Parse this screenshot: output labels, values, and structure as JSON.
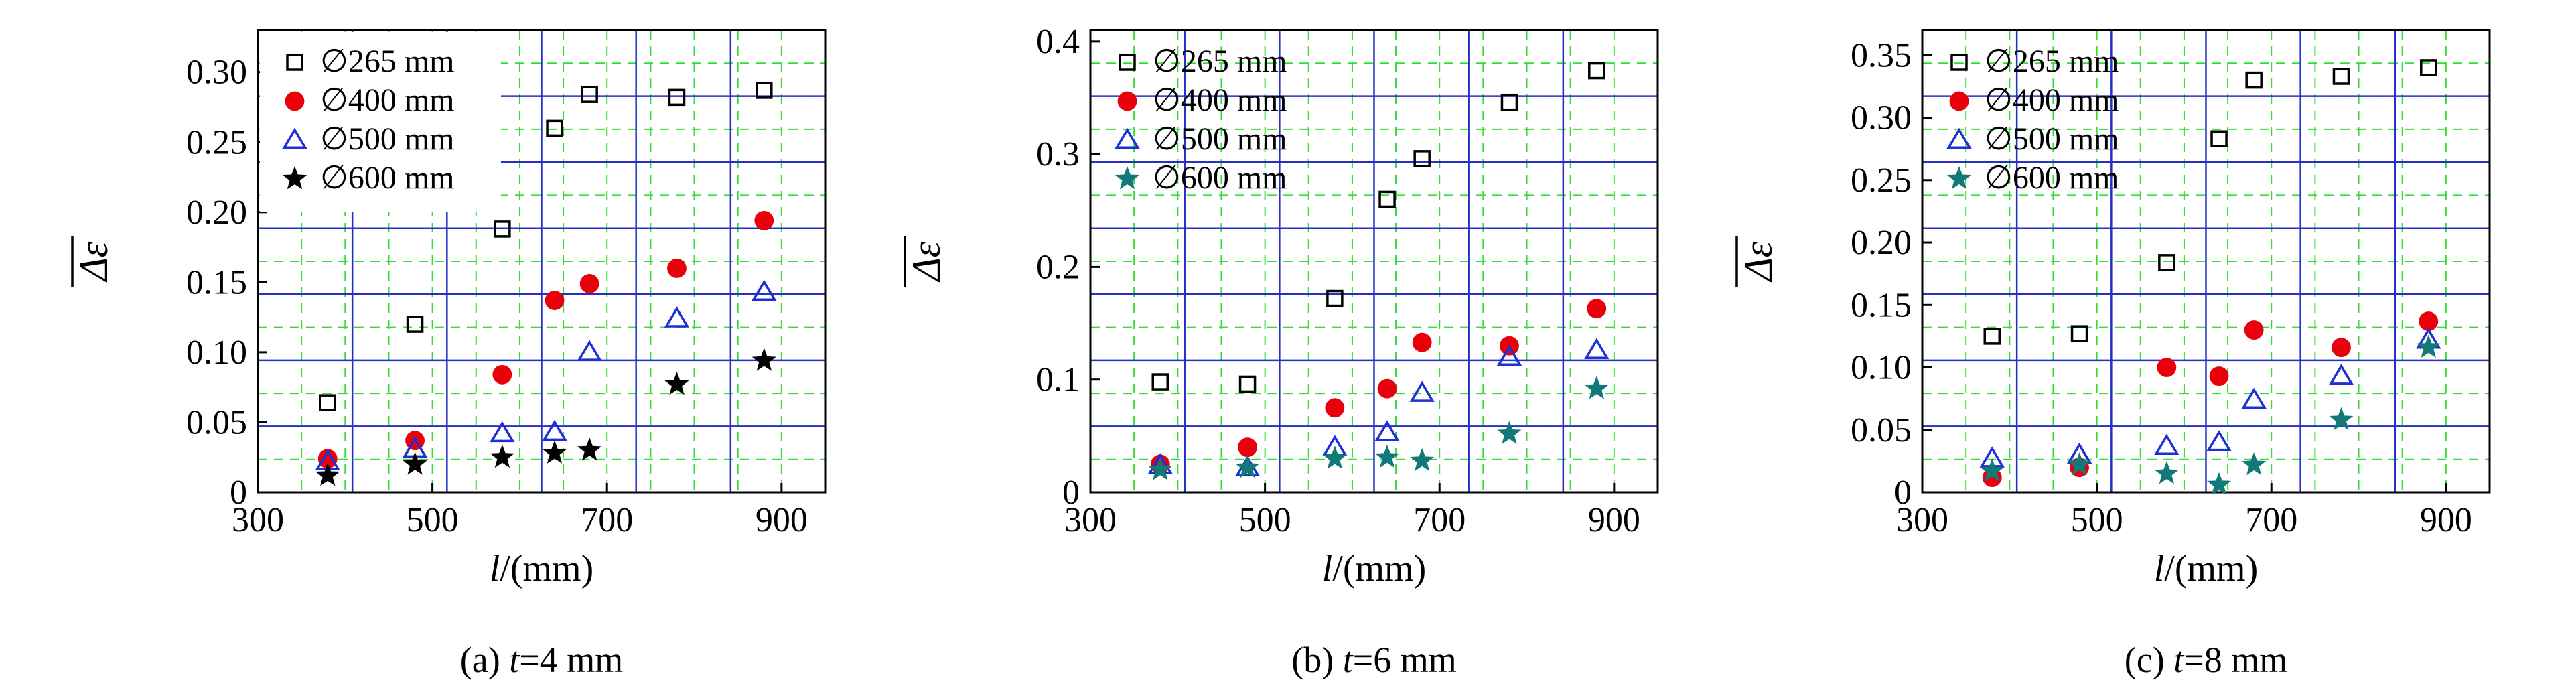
{
  "panels": [
    {
      "caption_prefix": "(a) ",
      "caption_var": "t",
      "caption_suffix": "=4 mm",
      "ylabel": "Δε",
      "xlabel_var": "l",
      "xlabel_unit": "/(mm)",
      "legend": [
        "∅265 mm",
        "∅400 mm",
        "∅500 mm",
        "∅600 mm"
      ]
    },
    {
      "caption_prefix": "(b) ",
      "caption_var": "t",
      "caption_suffix": "=6 mm",
      "ylabel": "Δε",
      "xlabel_var": "l",
      "xlabel_unit": "/(mm)",
      "legend": [
        "∅265 mm",
        "∅400 mm",
        "∅500 mm",
        "∅600 mm"
      ]
    },
    {
      "caption_prefix": "(c) ",
      "caption_var": "t",
      "caption_suffix": "=8 mm",
      "ylabel": "Δε",
      "xlabel_var": "l",
      "xlabel_unit": "/(mm)",
      "legend": [
        "∅265 mm",
        "∅400 mm",
        "∅500 mm",
        "∅600 mm"
      ]
    }
  ],
  "colors": {
    "s265": "#000000",
    "s400": "#e8000b",
    "s500": "#1f2fd6",
    "s600_a": "#000000",
    "s600_bc": "#117a78",
    "grid_major": "#2630c8",
    "grid_minor": "#33dd33"
  },
  "chart_data": [
    {
      "type": "scatter",
      "x_ticks": [
        "300",
        "500",
        "700",
        "900"
      ],
      "y_ticks": [
        "0",
        "0.05",
        "0.10",
        "0.15",
        "0.20",
        "0.25",
        "0.30"
      ],
      "xlim": [
        300,
        950
      ],
      "ylim": [
        0,
        0.33
      ],
      "grid": true,
      "legend_position": "top-left",
      "series": [
        {
          "name": "∅265 mm",
          "marker": "open-square",
          "x": [
            380,
            480,
            580,
            640,
            680,
            780,
            880
          ],
          "y": [
            0.064,
            0.12,
            0.188,
            0.26,
            0.284,
            0.282,
            0.287
          ]
        },
        {
          "name": "∅400 mm",
          "marker": "filled-circle",
          "x": [
            380,
            480,
            580,
            640,
            680,
            780,
            880
          ],
          "y": [
            0.024,
            0.037,
            0.084,
            0.137,
            0.149,
            0.16,
            0.194
          ]
        },
        {
          "name": "∅500 mm",
          "marker": "open-triangle",
          "x": [
            380,
            480,
            580,
            640,
            680,
            780,
            880
          ],
          "y": [
            0.022,
            0.031,
            0.042,
            0.043,
            0.1,
            0.124,
            0.143
          ]
        },
        {
          "name": "∅600 mm",
          "marker": "filled-star",
          "x": [
            380,
            480,
            580,
            640,
            680,
            780,
            880
          ],
          "y": [
            0.012,
            0.02,
            0.025,
            0.028,
            0.03,
            0.077,
            0.094
          ]
        }
      ]
    },
    {
      "type": "scatter",
      "x_ticks": [
        "300",
        "500",
        "700",
        "900"
      ],
      "y_ticks": [
        "0",
        "0.1",
        "0.2",
        "0.3",
        "0.4"
      ],
      "xlim": [
        300,
        950
      ],
      "ylim": [
        0,
        0.41
      ],
      "grid": true,
      "legend_position": "top-left",
      "series": [
        {
          "name": "∅265 mm",
          "marker": "open-square",
          "x": [
            380,
            480,
            580,
            640,
            680,
            780,
            880
          ],
          "y": [
            0.098,
            0.096,
            0.172,
            0.26,
            0.296,
            0.346,
            0.374
          ]
        },
        {
          "name": "∅400 mm",
          "marker": "filled-circle",
          "x": [
            380,
            480,
            580,
            640,
            680,
            780,
            880
          ],
          "y": [
            0.025,
            0.04,
            0.075,
            0.092,
            0.133,
            0.13,
            0.163
          ]
        },
        {
          "name": "∅500 mm",
          "marker": "open-triangle",
          "x": [
            380,
            480,
            580,
            640,
            680,
            780,
            880
          ],
          "y": [
            0.024,
            0.022,
            0.04,
            0.053,
            0.088,
            0.12,
            0.126
          ]
        },
        {
          "name": "∅600 mm",
          "marker": "filled-star",
          "x": [
            380,
            480,
            580,
            640,
            680,
            780,
            880
          ],
          "y": [
            0.02,
            0.022,
            0.03,
            0.031,
            0.028,
            0.052,
            0.092
          ]
        }
      ]
    },
    {
      "type": "scatter",
      "x_ticks": [
        "300",
        "500",
        "700",
        "900"
      ],
      "y_ticks": [
        "0",
        "0.05",
        "0.10",
        "0.15",
        "0.20",
        "0.25",
        "0.30",
        "0.35"
      ],
      "xlim": [
        300,
        950
      ],
      "ylim": [
        0,
        0.37
      ],
      "grid": true,
      "legend_position": "top-left",
      "series": [
        {
          "name": "∅265 mm",
          "marker": "open-square",
          "x": [
            380,
            480,
            580,
            640,
            680,
            780,
            880
          ],
          "y": [
            0.125,
            0.127,
            0.184,
            0.283,
            0.33,
            0.333,
            0.34
          ]
        },
        {
          "name": "∅400 mm",
          "marker": "filled-circle",
          "x": [
            380,
            480,
            580,
            640,
            680,
            780,
            880
          ],
          "y": [
            0.012,
            0.02,
            0.1,
            0.093,
            0.13,
            0.116,
            0.137
          ]
        },
        {
          "name": "∅500 mm",
          "marker": "open-triangle",
          "x": [
            380,
            480,
            580,
            640,
            680,
            780,
            880
          ],
          "y": [
            0.027,
            0.03,
            0.037,
            0.04,
            0.074,
            0.093,
            0.122
          ]
        },
        {
          "name": "∅600 mm",
          "marker": "filled-star",
          "x": [
            380,
            480,
            580,
            640,
            680,
            780,
            880
          ],
          "y": [
            0.017,
            0.022,
            0.015,
            0.006,
            0.022,
            0.058,
            0.116
          ]
        }
      ]
    }
  ]
}
